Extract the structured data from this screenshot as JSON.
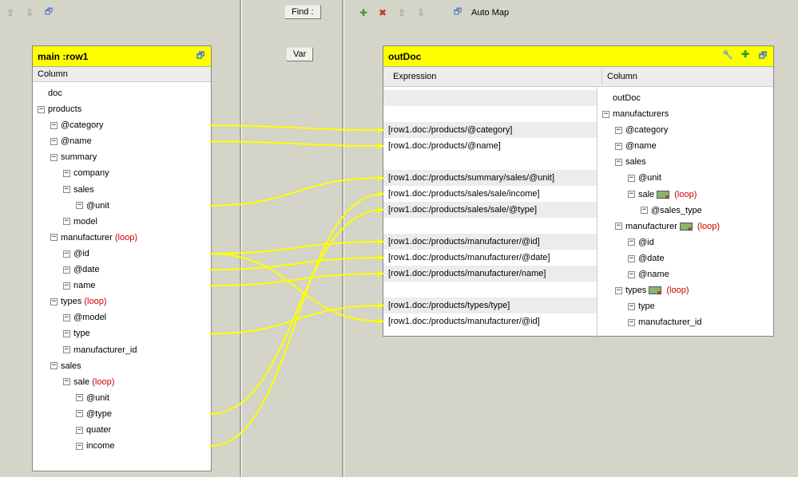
{
  "colors": {
    "bg": "#d4d4c9",
    "panel_bg": "#ffffff",
    "title_bg": "#ffff00",
    "header_bg": "#ececec",
    "shade_bg": "#ececec",
    "loop_text": "#cc0000",
    "connector": "#ffff00",
    "connector_stroke_width": 2
  },
  "toolbar": {
    "find_label": "Find :",
    "var_label": "Var",
    "automap_label": "Auto Map"
  },
  "left_panel": {
    "title": "main :row1",
    "column_header": "Column",
    "tree": [
      {
        "id": "doc",
        "indent": 0,
        "expander": "",
        "label": "doc"
      },
      {
        "id": "products",
        "indent": 0,
        "expander": "-",
        "label": "products"
      },
      {
        "id": "p_category",
        "indent": 1,
        "expander": "-",
        "label": "@category"
      },
      {
        "id": "p_name",
        "indent": 1,
        "expander": "-",
        "label": "@name"
      },
      {
        "id": "summary",
        "indent": 1,
        "expander": "-",
        "label": "summary"
      },
      {
        "id": "company",
        "indent": 2,
        "expander": "-",
        "label": "company"
      },
      {
        "id": "sales",
        "indent": 2,
        "expander": "-",
        "label": "sales"
      },
      {
        "id": "s_unit",
        "indent": 3,
        "expander": "-",
        "label": "@unit"
      },
      {
        "id": "model",
        "indent": 2,
        "expander": "-",
        "label": "model"
      },
      {
        "id": "manufacturer",
        "indent": 1,
        "expander": "-",
        "label": "manufacturer",
        "loop": true
      },
      {
        "id": "m_id",
        "indent": 2,
        "expander": "-",
        "label": "@id"
      },
      {
        "id": "m_date",
        "indent": 2,
        "expander": "-",
        "label": "@date"
      },
      {
        "id": "m_name",
        "indent": 2,
        "expander": "-",
        "label": "name"
      },
      {
        "id": "types",
        "indent": 1,
        "expander": "-",
        "label": "types",
        "loop": true
      },
      {
        "id": "t_model",
        "indent": 2,
        "expander": "-",
        "label": "@model"
      },
      {
        "id": "t_type",
        "indent": 2,
        "expander": "-",
        "label": "type"
      },
      {
        "id": "t_mid",
        "indent": 2,
        "expander": "-",
        "label": "manufacturer_id"
      },
      {
        "id": "sales2",
        "indent": 1,
        "expander": "-",
        "label": "sales"
      },
      {
        "id": "sale",
        "indent": 2,
        "expander": "-",
        "label": "sale",
        "loop": true
      },
      {
        "id": "sa_unit",
        "indent": 3,
        "expander": "-",
        "label": "@unit"
      },
      {
        "id": "sa_type",
        "indent": 3,
        "expander": "-",
        "label": "@type"
      },
      {
        "id": "quater",
        "indent": 3,
        "expander": "-",
        "label": "quater"
      },
      {
        "id": "income",
        "indent": 3,
        "expander": "-",
        "label": "income"
      }
    ]
  },
  "right_panel": {
    "title": "outDoc",
    "expr_header": "Expression",
    "col_header": "Column",
    "expressions": [
      {
        "id": "e_blank1",
        "text": "",
        "shade": true
      },
      {
        "id": "e_blank2",
        "text": ""
      },
      {
        "id": "e_cat",
        "text": "[row1.doc:/products/@category]",
        "shade": true
      },
      {
        "id": "e_name",
        "text": "[row1.doc:/products/@name]"
      },
      {
        "id": "e_blank3",
        "text": ""
      },
      {
        "id": "e_unit",
        "text": "[row1.doc:/products/summary/sales/@unit]",
        "shade": true
      },
      {
        "id": "e_income",
        "text": "[row1.doc:/products/sales/sale/income]"
      },
      {
        "id": "e_stype",
        "text": "[row1.doc:/products/sales/sale/@type]",
        "shade": true
      },
      {
        "id": "e_blank4",
        "text": ""
      },
      {
        "id": "e_mid",
        "text": "[row1.doc:/products/manufacturer/@id]",
        "shade": true
      },
      {
        "id": "e_mdate",
        "text": "[row1.doc:/products/manufacturer/@date]"
      },
      {
        "id": "e_mname",
        "text": "[row1.doc:/products/manufacturer/name]",
        "shade": true
      },
      {
        "id": "e_blank5",
        "text": ""
      },
      {
        "id": "e_ttype",
        "text": "[row1.doc:/products/types/type]",
        "shade": true
      },
      {
        "id": "e_tmid",
        "text": "[row1.doc:/products/manufacturer/@id]"
      }
    ],
    "tree": [
      {
        "id": "od",
        "indent": 0,
        "expander": "",
        "label": "outDoc"
      },
      {
        "id": "mans",
        "indent": 0,
        "expander": "-",
        "label": "manufacturers"
      },
      {
        "id": "o_cat",
        "indent": 1,
        "expander": "-",
        "label": "@category"
      },
      {
        "id": "o_name",
        "indent": 1,
        "expander": "-",
        "label": "@name"
      },
      {
        "id": "o_sales",
        "indent": 1,
        "expander": "-",
        "label": "sales"
      },
      {
        "id": "o_unit",
        "indent": 2,
        "expander": "-",
        "label": "@unit"
      },
      {
        "id": "o_sale",
        "indent": 2,
        "expander": "-",
        "label": "sale",
        "loop": true,
        "chip": true
      },
      {
        "id": "o_st",
        "indent": 3,
        "expander": "-",
        "label": "@sales_type"
      },
      {
        "id": "o_man",
        "indent": 1,
        "expander": "-",
        "label": "manufacturer",
        "loop": true,
        "chip": true
      },
      {
        "id": "o_mid",
        "indent": 2,
        "expander": "-",
        "label": "@id"
      },
      {
        "id": "o_mdate",
        "indent": 2,
        "expander": "-",
        "label": "@date"
      },
      {
        "id": "o_mname",
        "indent": 2,
        "expander": "-",
        "label": "@name"
      },
      {
        "id": "o_types",
        "indent": 1,
        "expander": "-",
        "label": "types",
        "loop": true,
        "chip": true
      },
      {
        "id": "o_type",
        "indent": 2,
        "expander": "-",
        "label": "type"
      },
      {
        "id": "o_tmid",
        "indent": 2,
        "expander": "-",
        "label": "manufacturer_id"
      }
    ]
  },
  "connectors": [
    {
      "from": "p_category",
      "to": "e_cat"
    },
    {
      "from": "p_name",
      "to": "e_name"
    },
    {
      "from": "s_unit",
      "to": "e_unit"
    },
    {
      "from": "income",
      "to": "e_income"
    },
    {
      "from": "sa_type",
      "to": "e_stype"
    },
    {
      "from": "m_id",
      "to": "e_mid"
    },
    {
      "from": "m_date",
      "to": "e_mdate"
    },
    {
      "from": "m_name",
      "to": "e_mname"
    },
    {
      "from": "t_type",
      "to": "e_ttype"
    },
    {
      "from": "m_id",
      "to": "e_tmid"
    }
  ]
}
